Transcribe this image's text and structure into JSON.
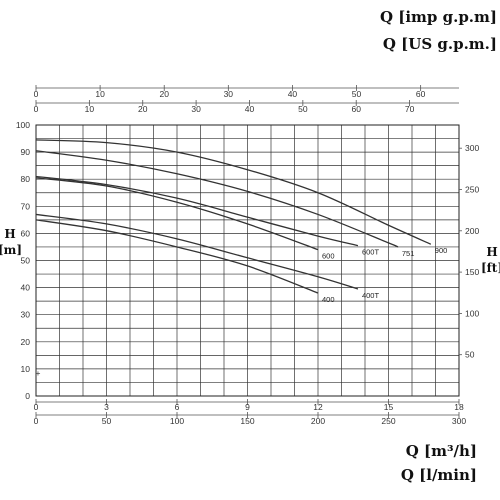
{
  "labels": {
    "top1": "Q [imp g.p.m]",
    "top2": "Q [US g.p.m.]",
    "bottom1": "Q [m³/h]",
    "bottom2": "Q [l/min]",
    "left_h": "H",
    "left_unit": "[m]",
    "right_h": "H",
    "right_unit": "[ft]"
  },
  "chart_data": {
    "type": "line",
    "title": "",
    "xlabel": "Q [m³/h]",
    "ylabel": "H [m]",
    "xlim": [
      0,
      18
    ],
    "ylim": [
      0,
      100
    ],
    "grid": true,
    "x_ticks": [
      "0",
      "3",
      "6",
      "9",
      "12",
      "15",
      "18"
    ],
    "y_ticks": [
      "0",
      "10",
      "20",
      "30",
      "40",
      "50",
      "60",
      "70",
      "80",
      "90",
      "100"
    ],
    "lmin_ticks": [
      "0",
      "50",
      "100",
      "150",
      "200",
      "250",
      "300"
    ],
    "lmin_values": [
      0,
      50,
      100,
      150,
      200,
      250,
      300
    ],
    "impgpm_ticks": [
      "0",
      "10",
      "20",
      "30",
      "40",
      "50",
      "60"
    ],
    "impgpm_values": [
      0,
      10,
      20,
      30,
      40,
      50,
      60
    ],
    "usgpm_ticks": [
      "0",
      "10",
      "20",
      "30",
      "40",
      "50",
      "60",
      "70"
    ],
    "usgpm_values": [
      0,
      10,
      20,
      30,
      40,
      50,
      60,
      70
    ],
    "ft_ticks": [
      "50",
      "100",
      "150",
      "200",
      "250",
      "300"
    ],
    "ft_values": [
      50,
      100,
      150,
      200,
      250,
      300
    ],
    "series": [
      {
        "name": "400",
        "x": [
          0,
          3,
          6,
          9,
          12
        ],
        "y": [
          65,
          61,
          55,
          48,
          38
        ]
      },
      {
        "name": "400T",
        "x": [
          0,
          3,
          6,
          9,
          12,
          13.7
        ],
        "y": [
          67,
          63.5,
          58,
          51,
          44,
          39.5
        ]
      },
      {
        "name": "600",
        "x": [
          0,
          3,
          6,
          9,
          12
        ],
        "y": [
          80.5,
          77.5,
          71.5,
          63.5,
          54
        ]
      },
      {
        "name": "600T",
        "x": [
          0,
          3,
          6,
          9,
          12,
          13.7
        ],
        "y": [
          81,
          78,
          73,
          66,
          59,
          55.5
        ]
      },
      {
        "name": "751",
        "x": [
          0,
          3,
          6,
          9,
          12,
          15,
          15.4
        ],
        "y": [
          90.5,
          87,
          82,
          75.5,
          67,
          56.5,
          55
        ]
      },
      {
        "name": "900",
        "x": [
          0,
          3,
          6,
          9,
          12,
          15,
          16.8
        ],
        "y": [
          94.5,
          93.5,
          90,
          83.5,
          75,
          63,
          56
        ]
      }
    ]
  }
}
